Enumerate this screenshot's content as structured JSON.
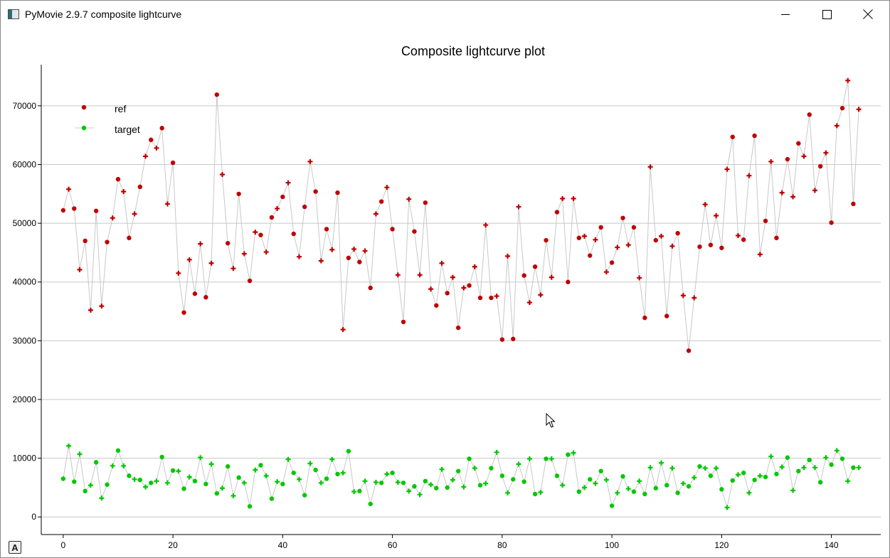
{
  "window": {
    "title": "PyMovie 2.9.7 composite lightcurve",
    "icons": {
      "app": "app-icon",
      "minimize": "minimize-icon",
      "maximize": "maximize-icon",
      "close": "close-icon",
      "autoscale": "autoscale-a-icon",
      "cursor": "mouse-pointer-icon"
    },
    "autoscale_label": "A"
  },
  "chart_data": {
    "type": "scatter",
    "title": "Composite lightcurve plot",
    "xlabel": "",
    "ylabel": "",
    "xlim": [
      -4,
      149
    ],
    "ylim": [
      -3000,
      77000
    ],
    "xticks": [
      0,
      20,
      40,
      60,
      80,
      100,
      120,
      140
    ],
    "yticks": [
      0,
      10000,
      20000,
      30000,
      40000,
      50000,
      60000,
      70000
    ],
    "xtick_labels": [
      "0",
      "20",
      "40",
      "60",
      "80",
      "100",
      "120",
      "140"
    ],
    "ytick_labels": [
      "0",
      "10000",
      "20000",
      "30000",
      "40000",
      "50000",
      "60000",
      "70000"
    ],
    "grid": "horizontal",
    "legend": "top-left",
    "connecting_line_color": "#c8c8c8",
    "x": [
      0,
      1,
      2,
      3,
      4,
      5,
      6,
      7,
      8,
      9,
      10,
      11,
      12,
      13,
      14,
      15,
      16,
      17,
      18,
      19,
      20,
      21,
      22,
      23,
      24,
      25,
      26,
      27,
      28,
      29,
      30,
      31,
      32,
      33,
      34,
      35,
      36,
      37,
      38,
      39,
      40,
      41,
      42,
      43,
      44,
      45,
      46,
      47,
      48,
      49,
      50,
      51,
      52,
      53,
      54,
      55,
      56,
      57,
      58,
      59,
      60,
      61,
      62,
      63,
      64,
      65,
      66,
      67,
      68,
      69,
      70,
      71,
      72,
      73,
      74,
      75,
      76,
      77,
      78,
      79,
      80,
      81,
      82,
      83,
      84,
      85,
      86,
      87,
      88,
      89,
      90,
      91,
      92,
      93,
      94,
      95,
      96,
      97,
      98,
      99,
      100,
      101,
      102,
      103,
      104,
      105,
      106,
      107,
      108,
      109,
      110,
      111,
      112,
      113,
      114,
      115,
      116,
      117,
      118,
      119,
      120,
      121,
      122,
      123,
      124,
      125,
      126,
      127,
      128,
      129,
      130,
      131,
      132,
      133,
      134,
      135,
      136,
      137,
      138,
      139,
      140,
      141,
      142,
      143,
      144,
      145
    ],
    "series": [
      {
        "name": "ref",
        "color": "#c00000",
        "marker": "dot",
        "values": [
          52200,
          55800,
          52500,
          42100,
          47000,
          35200,
          52100,
          35900,
          46800,
          50900,
          57500,
          55400,
          47500,
          51600,
          56200,
          61400,
          64200,
          62800,
          66200,
          53300,
          60300,
          41500,
          34800,
          43800,
          38000,
          46500,
          37400,
          43200,
          71900,
          58300,
          46600,
          42300,
          55000,
          44800,
          40200,
          48500,
          48000,
          45100,
          51000,
          52500,
          54500,
          56900,
          48200,
          44300,
          52800,
          60500,
          55400,
          43600,
          49000,
          45500,
          55200,
          31900,
          44100,
          45600,
          43400,
          45300,
          39000,
          51600,
          53700,
          56100,
          49000,
          41200,
          33200,
          54100,
          48600,
          41200,
          53500,
          38800,
          36000,
          43200,
          38100,
          40800,
          32200,
          39000,
          39400,
          42600,
          37300,
          49700,
          37300,
          37600,
          30200,
          44400,
          30300,
          52800,
          41100,
          36500,
          42600,
          37800,
          47100,
          40800,
          51900,
          54200,
          40000,
          54200,
          47500,
          47800,
          44500,
          47200,
          49300,
          41700,
          43300,
          45900,
          50900,
          46300,
          49300,
          40700,
          33900,
          59600,
          47100,
          47800,
          34200,
          46100,
          48300,
          37700,
          28300,
          37300,
          46000,
          53200,
          46300,
          51300,
          45800,
          59200,
          64700,
          47900,
          47200,
          58100,
          64900,
          44700,
          50400,
          60500,
          47500,
          55200,
          60900,
          54500,
          63600,
          61400,
          68500,
          55600,
          59700,
          62000,
          50100,
          66600,
          69600,
          74300,
          53300,
          69400
        ]
      },
      {
        "name": "target",
        "color": "#00c800",
        "marker": "dot",
        "values": [
          6500,
          12100,
          6000,
          10700,
          4400,
          5400,
          9300,
          3200,
          5500,
          8700,
          11300,
          8700,
          7000,
          6400,
          6300,
          5100,
          5800,
          6100,
          10200,
          5800,
          7900,
          7800,
          4800,
          6800,
          6100,
          10100,
          5600,
          9000,
          4000,
          4900,
          8600,
          3600,
          6700,
          5800,
          1800,
          8000,
          8800,
          7000,
          3100,
          6000,
          5600,
          9800,
          7500,
          6400,
          3700,
          9100,
          8000,
          5800,
          6500,
          9800,
          7300,
          7500,
          11200,
          4300,
          4400,
          6100,
          2200,
          5900,
          5800,
          7300,
          7500,
          5900,
          5800,
          4400,
          5200,
          3800,
          6100,
          5500,
          4900,
          8100,
          5000,
          6300,
          7800,
          5100,
          9900,
          8300,
          5400,
          5700,
          8300,
          11000,
          7000,
          4100,
          6400,
          9000,
          6000,
          9900,
          3900,
          4200,
          9900,
          9900,
          7000,
          5400,
          10600,
          10900,
          4300,
          5000,
          6400,
          5700,
          7800,
          6300,
          1900,
          4100,
          6900,
          4800,
          4300,
          6100,
          3900,
          8400,
          4900,
          9200,
          5400,
          8300,
          4100,
          5700,
          5200,
          6700,
          8600,
          8300,
          7000,
          8300,
          4700,
          1600,
          6200,
          7200,
          7500,
          4100,
          6300,
          7000,
          6800,
          10300,
          7300,
          8500,
          10100,
          4500,
          7800,
          8400,
          9700,
          8400,
          5900,
          10100,
          8900,
          11300,
          9900,
          6100,
          8400,
          8400
        ]
      }
    ]
  }
}
